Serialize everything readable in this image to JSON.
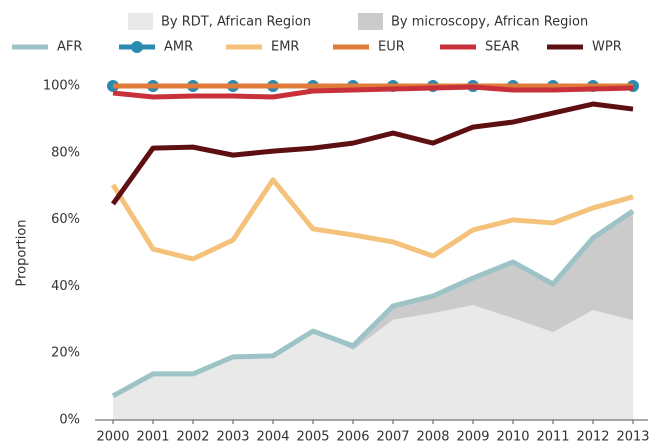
{
  "chart_data": {
    "type": "line",
    "y_label": "Proportion",
    "categories": [
      "2000",
      "2001",
      "2002",
      "2003",
      "2004",
      "2005",
      "2006",
      "2007",
      "2008",
      "2009",
      "2010",
      "2011",
      "2012",
      "2013"
    ],
    "ylim": [
      0,
      100
    ],
    "yticks": [
      {
        "value": 0,
        "label": "0%"
      },
      {
        "value": 20,
        "label": "20%"
      },
      {
        "value": 40,
        "label": "40%"
      },
      {
        "value": 60,
        "label": "60%"
      },
      {
        "value": 80,
        "label": "80%"
      },
      {
        "value": 100,
        "label": "100%"
      }
    ],
    "areas": [
      {
        "name": "By RDT, African Region",
        "color": "#e9e9e9",
        "values": [
          7,
          13.8,
          13.8,
          18.9,
          19.2,
          26.6,
          21,
          30,
          32,
          34.4,
          30.5,
          26.3,
          32.9,
          29.9
        ]
      },
      {
        "name": "By microscopy, African Region",
        "color": "#cbcbcb",
        "values": [
          0,
          0,
          0,
          0,
          0,
          0,
          1.2,
          4.1,
          5.1,
          8.1,
          16.8,
          14.4,
          21.6,
          32.7
        ]
      }
    ],
    "series": [
      {
        "name": "AFR",
        "color": "#9dc3c6",
        "values": [
          7.2,
          13.8,
          13.8,
          18.9,
          19.2,
          26.6,
          22.2,
          34.1,
          37.1,
          42.5,
          47.3,
          40.7,
          54.5,
          62.6
        ]
      },
      {
        "name": "AMR",
        "color": "#2a8ab0",
        "markers": true,
        "values": [
          100,
          100,
          100,
          100,
          100,
          100,
          100,
          100,
          100,
          100,
          100,
          100,
          100,
          100
        ]
      },
      {
        "name": "EMR",
        "color": "#f4c27a",
        "values": [
          70.4,
          51.2,
          48.2,
          53.9,
          71.9,
          57.2,
          55.4,
          53.3,
          49.1,
          56.9,
          59.9,
          59.0,
          63.5,
          66.8
        ]
      },
      {
        "name": "EUR",
        "color": "#e07b39",
        "values": [
          100,
          100,
          100,
          100,
          100,
          100,
          100,
          100,
          100,
          100,
          100,
          100,
          100,
          100
        ]
      },
      {
        "name": "SEAR",
        "color": "#c8313a",
        "values": [
          97.9,
          96.7,
          97,
          97,
          96.7,
          98.5,
          98.8,
          99.1,
          99.4,
          99.7,
          98.8,
          98.8,
          99.1,
          99.4
        ]
      },
      {
        "name": "WPR",
        "color": "#5e0f12",
        "values": [
          64.7,
          81.4,
          81.7,
          79.3,
          80.5,
          81.4,
          82.9,
          85.9,
          82.9,
          87.7,
          89.2,
          91.9,
          94.6,
          93.1
        ]
      }
    ]
  }
}
